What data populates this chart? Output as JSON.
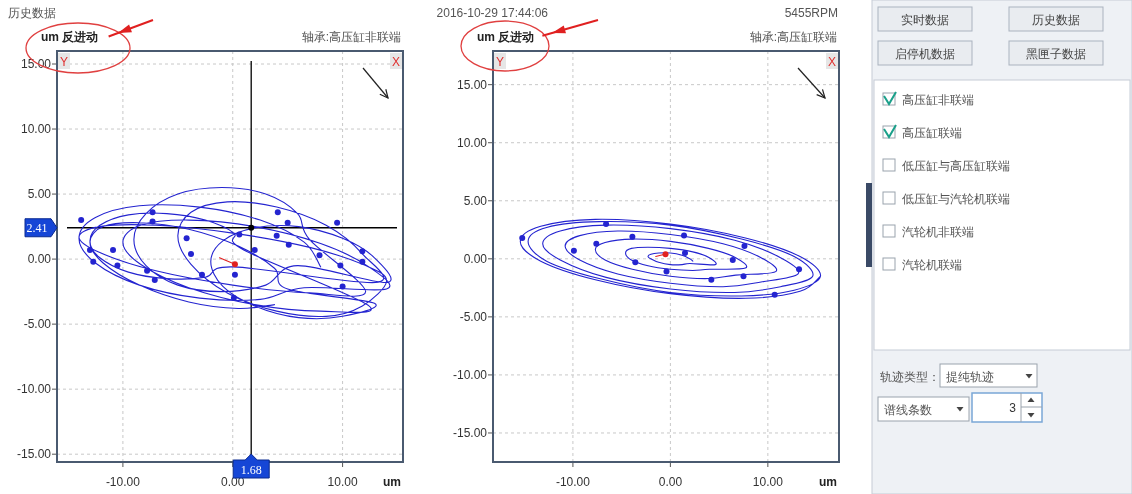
{
  "chart_data": [
    {
      "type": "line",
      "title": "轴承:高压缸非联端",
      "ylabel": "um 反进动",
      "xlabel": "um",
      "annotations": [
        "历史数据",
        "2016-10-29 17:44:06",
        "Y",
        "X"
      ],
      "xlim": [
        -16,
        15.5
      ],
      "ylim": [
        -15.6,
        16
      ],
      "xticks": [
        {
          "value": -10,
          "label": "-10.00"
        },
        {
          "value": 0,
          "label": "0.00"
        },
        {
          "value": 10,
          "label": "10.00"
        }
      ],
      "yticks": [
        {
          "value": 15,
          "label": "15.00"
        },
        {
          "value": 10,
          "label": "10.00"
        },
        {
          "value": 5,
          "label": "5.00"
        },
        {
          "value": 0,
          "label": "0.00"
        },
        {
          "value": -5,
          "label": "-5.00"
        },
        {
          "value": -10,
          "label": "-10.00"
        },
        {
          "value": -15,
          "label": "-15.00"
        }
      ],
      "grid": true,
      "ref_lines": [
        {
          "axis": "x",
          "value": 1.68,
          "label": "1.68",
          "color": "#000000"
        },
        {
          "axis": "y",
          "value": 2.41,
          "label": "2.41",
          "color": "#000000"
        }
      ],
      "series": [
        {
          "type": "line",
          "color": "#2424d0",
          "x": [
            8,
            6.5,
            2.5,
            -3,
            -8.5,
            -12.5,
            -14,
            -12.5,
            -8.5,
            -3,
            2.5,
            6.5,
            14,
            12.4,
            8,
            2,
            -4,
            -8.4,
            -10,
            -8.4,
            -4,
            2,
            8,
            12.4,
            1,
            0.1,
            -2.5,
            -6,
            -9.5,
            -12.1,
            -13,
            -12.1,
            -9.5,
            -6,
            -2.5,
            0.1,
            13,
            11.8,
            8.5,
            4,
            -0.5,
            -3.8,
            -5,
            -3.8,
            -0.5,
            4,
            8.5,
            11.8,
            14,
            12.1,
            7,
            0,
            -7,
            -12.1,
            -14,
            -12.1,
            -7,
            0,
            7,
            12.1,
            7,
            5.9,
            3,
            -1,
            -5,
            -7.9,
            -9,
            -7.9,
            -5,
            -1,
            3,
            5.9,
            14,
            12.9,
            10,
            6,
            2,
            -0.9,
            -2,
            -0.9,
            2,
            6,
            10,
            12.9,
            5,
            3.8,
            0.5,
            -4,
            -8.5,
            -11.8,
            -13,
            -11.8,
            -8.5,
            -4,
            0.5,
            3.8
          ],
          "values": [
            -0.6,
            1.3,
            3.0,
            4.0,
            4.1,
            3.2,
            1.6,
            -0.3,
            -2.0,
            -3.0,
            -3.1,
            -2.2,
            -2.3,
            -0.6,
            1.2,
            2.5,
            3.0,
            2.6,
            1.3,
            -0.4,
            -2.2,
            -3.5,
            -4.0,
            -3.6,
            0.7,
            2.0,
            3.0,
            3.5,
            3.4,
            2.6,
            1.4,
            0.1,
            -1.0,
            -1.5,
            -1.4,
            -0.6,
            -1.8,
            0.4,
            2.6,
            4.0,
            4.4,
            3.6,
            1.8,
            -0.4,
            -2.6,
            -4.0,
            -4.4,
            -3.6,
            -1.7,
            -0.5,
            0.9,
            2.0,
            2.6,
            2.5,
            1.7,
            0.5,
            -0.9,
            -2.0,
            -2.6,
            -2.5,
            1.5,
            3.5,
            5.0,
            5.5,
            5.0,
            3.5,
            1.5,
            -0.5,
            -2.0,
            -2.5,
            -2.0,
            -0.5,
            -1.8,
            0.1,
            1.6,
            2.5,
            2.4,
            1.4,
            -0.2,
            -2.1,
            -3.6,
            -4.5,
            -4.4,
            -3.4,
            -2.3,
            -0.7,
            1.0,
            2.3,
            2.8,
            2.5,
            1.3,
            -0.3,
            -2.0,
            -3.3,
            -3.8,
            -3.5
          ]
        },
        {
          "type": "scatter",
          "color": "#2424d0",
          "x": [
            -13.8,
            -7.3,
            -7.3,
            -13.0,
            -10.9,
            -12.7,
            -10.5,
            -7.1,
            -4.2,
            -3.8,
            -2.8,
            0.2,
            0.1,
            0.6,
            2.0,
            4.1,
            5.0,
            4.0,
            5.1,
            7.9,
            9.5,
            9.8,
            10.0,
            11.8,
            11.8,
            -7.8
          ],
          "values": [
            3.0,
            3.6,
            2.9,
            0.7,
            0.7,
            -0.2,
            -0.5,
            -1.6,
            1.6,
            0.4,
            -1.2,
            -1.2,
            -3.0,
            1.9,
            0.7,
            3.6,
            2.8,
            1.8,
            1.1,
            0.3,
            2.8,
            -0.5,
            -2.1,
            0.6,
            -0.2,
            -0.9
          ]
        },
        {
          "type": "line",
          "color": "#e02020",
          "x": [
            -1.2,
            0.2
          ],
          "values": [
            0.1,
            -0.4
          ]
        },
        {
          "type": "scatter",
          "color": "#e02020",
          "x": [
            0.2
          ],
          "values": [
            -0.4
          ]
        },
        {
          "type": "scatter",
          "color": "#000000",
          "x": [
            1.68
          ],
          "values": [
            2.41
          ]
        }
      ]
    },
    {
      "type": "line",
      "title": "轴承:高压缸联端",
      "ylabel": "um 反进动",
      "xlabel": "um",
      "annotations": [
        "5455RPM",
        "Y",
        "X"
      ],
      "xlim": [
        -18.2,
        17.3
      ],
      "ylim": [
        -17.5,
        17.9
      ],
      "xticks": [
        {
          "value": -10,
          "label": "-10.00"
        },
        {
          "value": 0,
          "label": "0.00"
        },
        {
          "value": 10,
          "label": "10.00"
        }
      ],
      "yticks": [
        {
          "value": 15,
          "label": "15.00"
        },
        {
          "value": 10,
          "label": "10.00"
        },
        {
          "value": 5,
          "label": "5.00"
        },
        {
          "value": 0,
          "label": "0.00"
        },
        {
          "value": -5,
          "label": "-5.00"
        },
        {
          "value": -10,
          "label": "-10.00"
        },
        {
          "value": -15,
          "label": "-15.00"
        }
      ],
      "grid": true,
      "series": [
        {
          "type": "line",
          "color": "#2424d0",
          "x": [
            2.3,
            2.0,
            1.2,
            0,
            -1.2,
            -2.0,
            -2.3,
            -2.0,
            -1.2,
            0,
            1.2,
            2.0,
            4.6,
            4.0,
            2.3,
            0,
            -2.3,
            -4.0,
            -4.6,
            -4.0,
            -2.3,
            0,
            2.3,
            4.0,
            7.7,
            6.7,
            3.9,
            0,
            -3.9,
            -6.7,
            -7.7,
            -6.7,
            -3.9,
            0,
            3.9,
            6.7,
            10.8,
            9.3,
            5.4,
            0,
            -5.4,
            -9.3,
            -10.8,
            -9.3,
            -5.4,
            0,
            5.4,
            9.3,
            13.1,
            11.3,
            6.6,
            0,
            -6.6,
            -11.3,
            -13.1,
            -11.3,
            -6.6,
            0,
            6.6,
            11.3,
            14.6,
            12.7,
            7.3,
            0,
            -7.3,
            -12.7,
            -14.6,
            -12.7,
            -7.3,
            0,
            7.3,
            12.7,
            15.4,
            13.3,
            7.7,
            0,
            -7.7,
            -13.3,
            -15.4,
            -13.3,
            -7.7,
            0,
            7.7,
            13.3,
            15.4
          ],
          "values": [
            -0.2,
            0.0,
            0.3,
            0.5,
            0.5,
            0.4,
            0.2,
            0.0,
            -0.3,
            -0.5,
            -0.5,
            -0.4,
            -0.5,
            0.1,
            0.6,
            0.9,
            1.0,
            0.9,
            0.5,
            -0.1,
            -0.6,
            -0.9,
            -1.0,
            -0.9,
            -0.8,
            0.1,
            0.9,
            1.5,
            1.7,
            1.4,
            0.8,
            -0.1,
            -0.9,
            -1.5,
            -1.7,
            -1.4,
            -1.1,
            0.1,
            1.3,
            2.1,
            2.4,
            2.0,
            1.1,
            -0.1,
            -1.3,
            -2.1,
            -2.4,
            -2.0,
            -1.3,
            0.1,
            1.6,
            2.6,
            2.9,
            2.4,
            1.3,
            -0.1,
            -1.6,
            -2.6,
            -2.9,
            -2.4,
            -1.5,
            0.2,
            1.7,
            2.9,
            3.2,
            2.7,
            1.5,
            -0.2,
            -1.7,
            -2.9,
            -3.2,
            -2.7,
            -1.5,
            0.2,
            1.8,
            3.0,
            3.4,
            2.8,
            1.5,
            -0.2,
            -1.8,
            -3.0,
            -3.4,
            -2.8,
            -1.5
          ]
        },
        {
          "type": "scatter",
          "color": "#2424d0",
          "x": [
            -15.2,
            -6.6,
            -3.9,
            -7.6,
            -9.9,
            1.4,
            1.5,
            -3.6,
            -0.4,
            6.4,
            4.2,
            7.5,
            7.6,
            13.2,
            10.7
          ],
          "values": [
            1.8,
            3.0,
            1.9,
            1.3,
            0.7,
            2.0,
            0.5,
            -0.3,
            -1.1,
            -0.1,
            -1.8,
            -1.5,
            1.1,
            -0.9,
            -3.1
          ]
        },
        {
          "type": "line",
          "color": "#e02020",
          "x": [
            -1.5,
            -0.5
          ],
          "values": [
            0.2,
            0.4
          ]
        },
        {
          "type": "scatter",
          "color": "#e02020",
          "x": [
            -0.5
          ],
          "values": [
            0.4
          ]
        }
      ]
    },
    {
      "type": "other",
      "annotations": [
        "实时数据",
        "历史数据",
        "启停机数据",
        "黑匣子数据",
        "高压缸非联端",
        "高压缸联端",
        "低压缸与高压缸联端",
        "低压缸与汽轮机联端",
        "汽轮机非联端",
        "汽轮机联端",
        "轨迹类型：",
        "提纯轨迹",
        "谱线条数",
        "3"
      ]
    }
  ]
}
